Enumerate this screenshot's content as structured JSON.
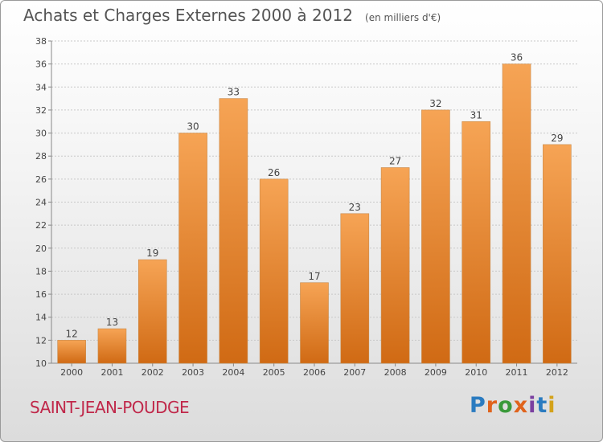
{
  "header": {
    "title": "Achats et Charges Externes 2000 à 2012",
    "subtitle": "(en milliers d'€)"
  },
  "footer": {
    "commune": "SAINT-JEAN-POUDGE",
    "logo_text": "Proxiti",
    "logo_colors": [
      "#2a7bc0",
      "#e0631c",
      "#3a9a3a",
      "#e0631c",
      "#7a3fa0",
      "#2a7bc0",
      "#d4a21a"
    ]
  },
  "colors": {
    "bar_top": "#f6a455",
    "bar_bottom": "#d06a14",
    "grid": "#c8c8c8"
  },
  "chart_data": {
    "type": "bar",
    "title": "Achats et Charges Externes 2000 à 2012",
    "subtitle": "(en milliers d'€)",
    "categories": [
      "2000",
      "2001",
      "2002",
      "2003",
      "2004",
      "2005",
      "2006",
      "2007",
      "2008",
      "2009",
      "2010",
      "2011",
      "2012"
    ],
    "values": [
      12,
      13,
      19,
      30,
      33,
      26,
      17,
      23,
      27,
      32,
      31,
      36,
      29
    ],
    "ylim": [
      10,
      38
    ],
    "yticks": [
      10,
      12,
      14,
      16,
      18,
      20,
      22,
      24,
      26,
      28,
      30,
      32,
      34,
      36,
      38
    ],
    "grid": true
  }
}
